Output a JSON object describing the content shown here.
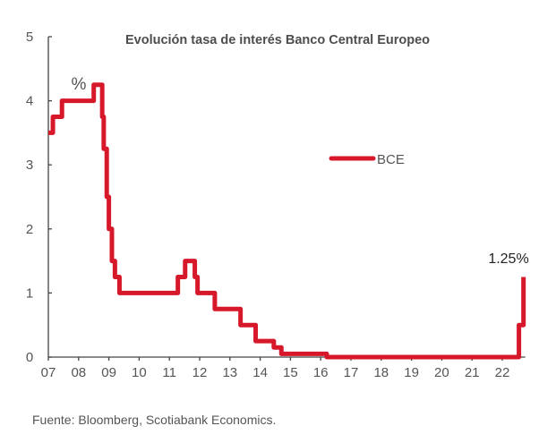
{
  "chart_data": {
    "type": "line",
    "step": true,
    "title": "Evolución tasa de interés Banco Central Europeo",
    "unit_label": "%",
    "xlabel": "",
    "ylabel": "",
    "xlim": [
      7,
      22.7
    ],
    "ylim": [
      0,
      5
    ],
    "x_ticks": [
      "07",
      "08",
      "09",
      "10",
      "11",
      "12",
      "13",
      "14",
      "15",
      "16",
      "17",
      "18",
      "19",
      "20",
      "21",
      "22"
    ],
    "y_ticks": [
      "0",
      "1",
      "2",
      "3",
      "4",
      "5"
    ],
    "grid": false,
    "legend": {
      "position": "center-right",
      "entries": [
        "BCE"
      ]
    },
    "series": [
      {
        "name": "BCE",
        "color": "#d7182a",
        "points": [
          {
            "x": 7.0,
            "y": 3.5
          },
          {
            "x": 7.15,
            "y": 3.75
          },
          {
            "x": 7.45,
            "y": 4.0
          },
          {
            "x": 8.5,
            "y": 4.25
          },
          {
            "x": 8.78,
            "y": 3.75
          },
          {
            "x": 8.83,
            "y": 3.25
          },
          {
            "x": 8.93,
            "y": 2.5
          },
          {
            "x": 9.0,
            "y": 2.0
          },
          {
            "x": 9.1,
            "y": 1.5
          },
          {
            "x": 9.2,
            "y": 1.25
          },
          {
            "x": 9.35,
            "y": 1.0
          },
          {
            "x": 11.28,
            "y": 1.25
          },
          {
            "x": 11.52,
            "y": 1.5
          },
          {
            "x": 11.84,
            "y": 1.25
          },
          {
            "x": 11.93,
            "y": 1.0
          },
          {
            "x": 12.5,
            "y": 0.75
          },
          {
            "x": 13.35,
            "y": 0.5
          },
          {
            "x": 13.85,
            "y": 0.25
          },
          {
            "x": 14.45,
            "y": 0.15
          },
          {
            "x": 14.7,
            "y": 0.05
          },
          {
            "x": 16.2,
            "y": 0.0
          },
          {
            "x": 22.55,
            "y": 0.5
          },
          {
            "x": 22.7,
            "y": 1.25
          }
        ]
      }
    ],
    "annotations": [
      {
        "text": "1.25%",
        "x": 22.7,
        "y": 1.25
      }
    ]
  },
  "source": "Fuente: Bloomberg, Scotiabank Economics."
}
